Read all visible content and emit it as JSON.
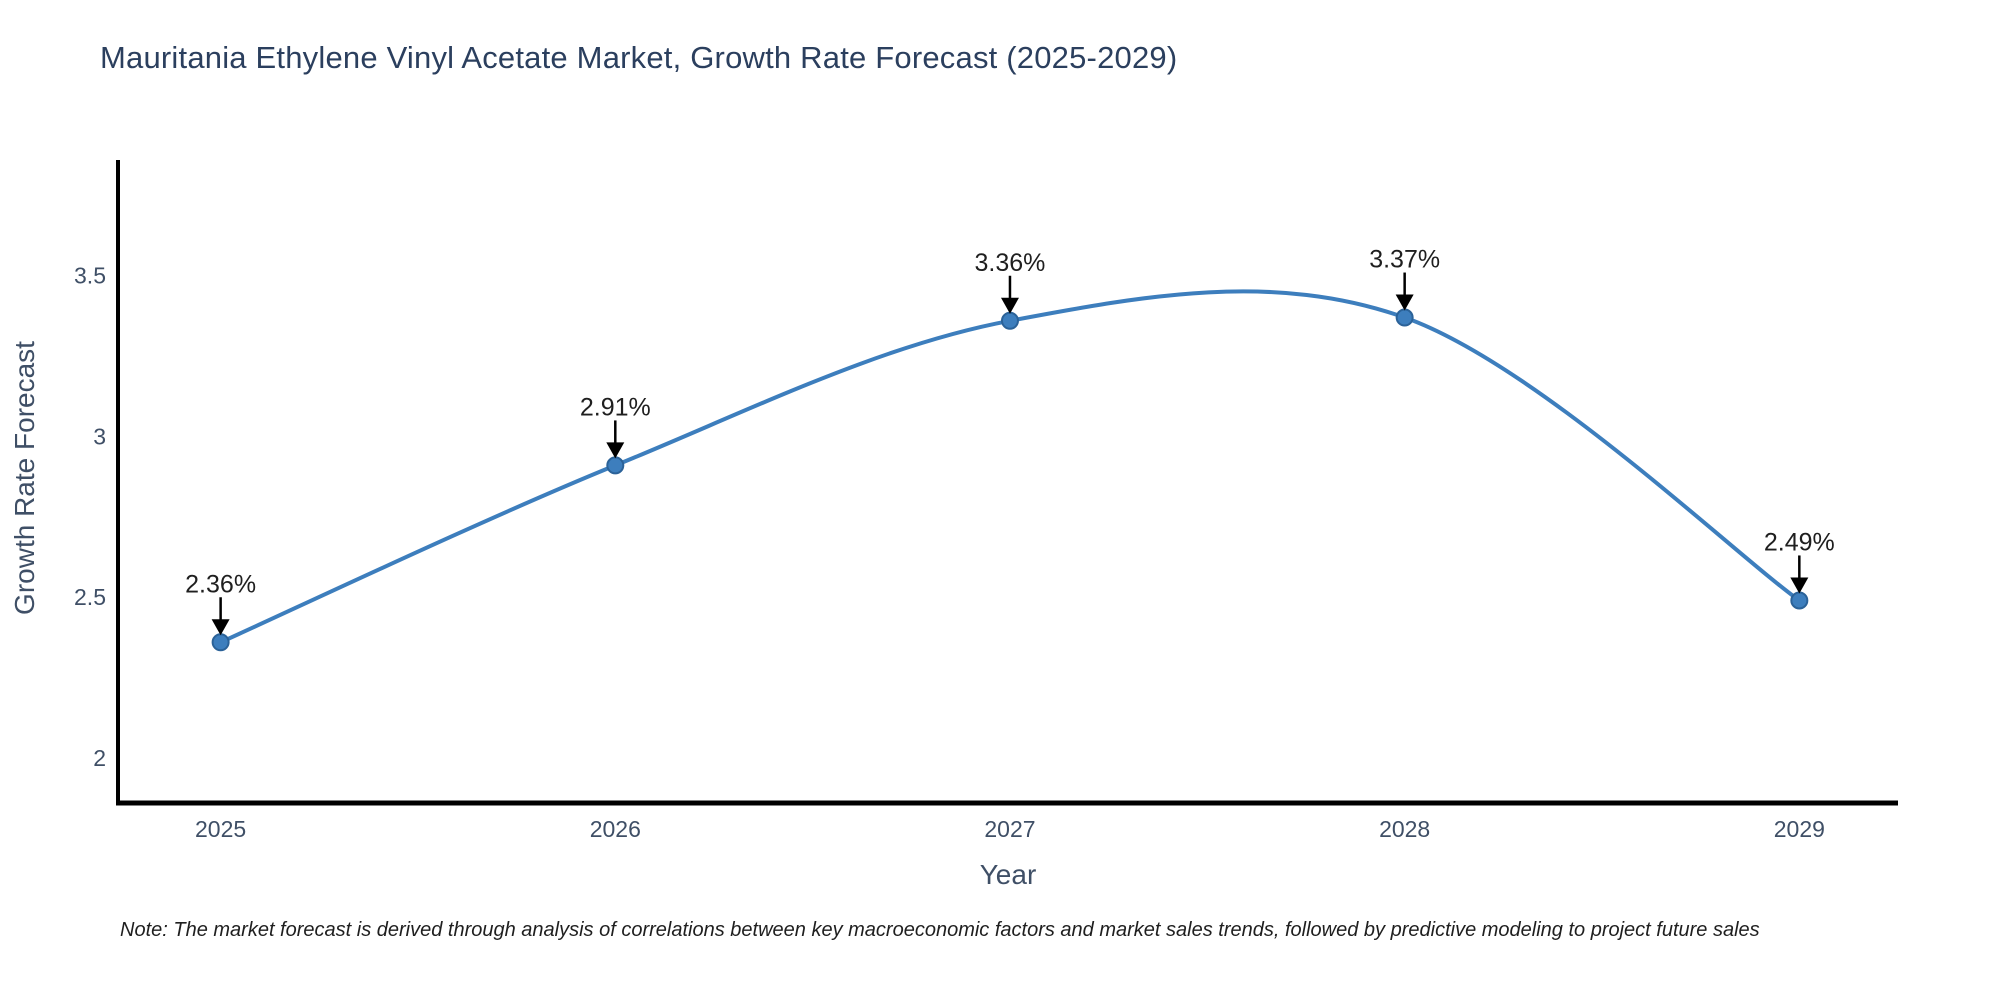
{
  "page": {
    "background": "#ffffff"
  },
  "chart_data": {
    "type": "line",
    "title": "Mauritania Ethylene Vinyl Acetate Market, Growth Rate Forecast (2025-2029)",
    "xlabel": "Year",
    "ylabel": "Growth Rate Forecast",
    "x": [
      2025,
      2026,
      2027,
      2028,
      2029
    ],
    "y": [
      2.36,
      2.91,
      3.36,
      3.37,
      2.49
    ],
    "point_labels": [
      "2.36%",
      "2.91%",
      "3.36%",
      "3.37%",
      "2.49%"
    ],
    "xtick_values": [
      2025,
      2026,
      2027,
      2028,
      2029
    ],
    "xtick_labels": [
      "2025",
      "2026",
      "2027",
      "2028",
      "2029"
    ],
    "ytick_values": [
      2,
      2.5,
      3,
      3.5
    ],
    "ytick_labels": [
      "2",
      "2.5",
      "3",
      "3.5"
    ],
    "xlim": [
      2024.74,
      2029.25
    ],
    "ylim": [
      1.86,
      3.86
    ],
    "line_shape": "spline",
    "grid": false,
    "legend": "none",
    "colors": {
      "line": "#3d7ebd",
      "marker_fill": "#3d7ebd",
      "marker_edge": "#2b6298",
      "axis_line": "#000000",
      "tick_text": "#3f4f66",
      "annotation_text": "#1f1f1f",
      "annotation_arrow": "#000000",
      "title_text": "#2b3f5e"
    }
  },
  "footnote": {
    "text": "Note: The market forecast is derived through analysis of correlations between key macroeconomic factors and market sales trends, followed by predictive modeling to project future sales"
  }
}
